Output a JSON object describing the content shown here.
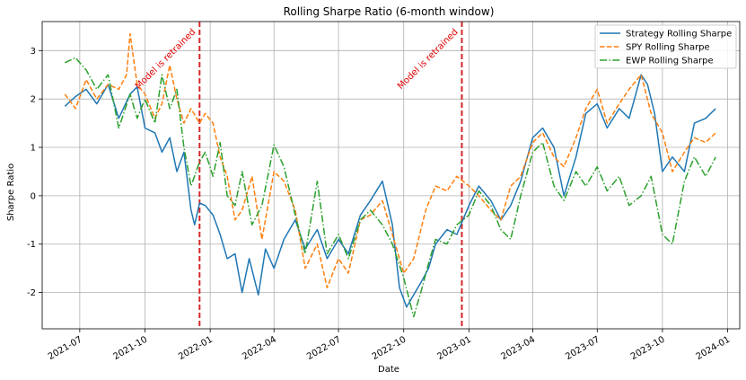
{
  "chart_data": {
    "type": "line",
    "title": "Rolling Sharpe Ratio (6-month window)",
    "xlabel": "Date",
    "ylabel": "Sharpe Ratio",
    "xlim": [
      "2021-05-09",
      "2024-01-18"
    ],
    "ylim": [
      -2.75,
      3.6
    ],
    "grid": true,
    "legend_position": "top-right",
    "x_ticks": [
      {
        "date": "2021-07-01",
        "label": "2021-07"
      },
      {
        "date": "2021-10-01",
        "label": "2021-10"
      },
      {
        "date": "2022-01-01",
        "label": "2022-01"
      },
      {
        "date": "2022-04-01",
        "label": "2022-04"
      },
      {
        "date": "2022-07-01",
        "label": "2022-07"
      },
      {
        "date": "2022-10-01",
        "label": "2022-10"
      },
      {
        "date": "2023-01-01",
        "label": "2023-01"
      },
      {
        "date": "2023-04-01",
        "label": "2023-04"
      },
      {
        "date": "2023-07-01",
        "label": "2023-07"
      },
      {
        "date": "2023-10-01",
        "label": "2023-10"
      },
      {
        "date": "2024-01-01",
        "label": "2024-01"
      }
    ],
    "y_ticks": [
      -2,
      -1,
      0,
      1,
      2,
      3
    ],
    "vertical_lines": [
      {
        "date": "2021-12-17",
        "label": "Model is retrained",
        "color": "#d62728"
      },
      {
        "date": "2022-12-22",
        "label": "Model is retrained",
        "color": "#d62728"
      }
    ],
    "series": [
      {
        "name": "Strategy Rolling Sharpe",
        "color": "#1f77b4",
        "style": "solid",
        "points": [
          [
            "2021-06-10",
            1.85
          ],
          [
            "2021-06-25",
            2.05
          ],
          [
            "2021-07-10",
            2.2
          ],
          [
            "2021-07-25",
            1.9
          ],
          [
            "2021-08-10",
            2.3
          ],
          [
            "2021-08-25",
            1.6
          ],
          [
            "2021-09-10",
            2.1
          ],
          [
            "2021-09-20",
            2.25
          ],
          [
            "2021-10-01",
            1.4
          ],
          [
            "2021-10-15",
            1.3
          ],
          [
            "2021-10-25",
            0.9
          ],
          [
            "2021-11-05",
            1.2
          ],
          [
            "2021-11-15",
            0.5
          ],
          [
            "2021-11-25",
            0.9
          ],
          [
            "2021-12-05",
            -0.3
          ],
          [
            "2021-12-10",
            -0.6
          ],
          [
            "2021-12-17",
            -0.15
          ],
          [
            "2021-12-25",
            -0.2
          ],
          [
            "2022-01-05",
            -0.4
          ],
          [
            "2022-01-15",
            -0.8
          ],
          [
            "2022-01-25",
            -1.3
          ],
          [
            "2022-02-05",
            -1.2
          ],
          [
            "2022-02-15",
            -2.0
          ],
          [
            "2022-02-25",
            -1.3
          ],
          [
            "2022-03-10",
            -2.05
          ],
          [
            "2022-03-20",
            -1.1
          ],
          [
            "2022-04-01",
            -1.5
          ],
          [
            "2022-04-15",
            -0.9
          ],
          [
            "2022-05-01",
            -0.5
          ],
          [
            "2022-05-15",
            -1.1
          ],
          [
            "2022-06-01",
            -0.7
          ],
          [
            "2022-06-15",
            -1.3
          ],
          [
            "2022-07-01",
            -0.9
          ],
          [
            "2022-07-15",
            -1.2
          ],
          [
            "2022-08-01",
            -0.4
          ],
          [
            "2022-08-15",
            -0.1
          ],
          [
            "2022-09-01",
            0.3
          ],
          [
            "2022-09-15",
            -0.6
          ],
          [
            "2022-09-25",
            -1.9
          ],
          [
            "2022-10-05",
            -2.3
          ],
          [
            "2022-10-15",
            -2.05
          ],
          [
            "2022-10-25",
            -1.8
          ],
          [
            "2022-11-05",
            -1.5
          ],
          [
            "2022-11-15",
            -1.0
          ],
          [
            "2022-12-01",
            -0.7
          ],
          [
            "2022-12-15",
            -0.8
          ],
          [
            "2023-01-01",
            -0.2
          ],
          [
            "2023-01-15",
            0.2
          ],
          [
            "2023-02-01",
            -0.1
          ],
          [
            "2023-02-15",
            -0.5
          ],
          [
            "2023-03-01",
            -0.2
          ],
          [
            "2023-03-15",
            0.3
          ],
          [
            "2023-04-01",
            1.2
          ],
          [
            "2023-04-15",
            1.4
          ],
          [
            "2023-05-01",
            1.0
          ],
          [
            "2023-05-15",
            0.0
          ],
          [
            "2023-06-01",
            0.8
          ],
          [
            "2023-06-15",
            1.7
          ],
          [
            "2023-07-01",
            1.9
          ],
          [
            "2023-07-15",
            1.4
          ],
          [
            "2023-08-01",
            1.8
          ],
          [
            "2023-08-15",
            1.6
          ],
          [
            "2023-09-01",
            2.5
          ],
          [
            "2023-09-10",
            2.3
          ],
          [
            "2023-09-20",
            1.7
          ],
          [
            "2023-10-01",
            0.5
          ],
          [
            "2023-10-15",
            0.8
          ],
          [
            "2023-11-01",
            0.5
          ],
          [
            "2023-11-15",
            1.5
          ],
          [
            "2023-12-01",
            1.6
          ],
          [
            "2023-12-15",
            1.8
          ]
        ]
      },
      {
        "name": "SPY Rolling Sharpe",
        "color": "#ff7f0e",
        "style": "dashed",
        "points": [
          [
            "2021-06-10",
            2.1
          ],
          [
            "2021-06-25",
            1.8
          ],
          [
            "2021-07-10",
            2.4
          ],
          [
            "2021-07-25",
            2.0
          ],
          [
            "2021-08-10",
            2.3
          ],
          [
            "2021-08-25",
            2.2
          ],
          [
            "2021-09-05",
            2.5
          ],
          [
            "2021-09-10",
            3.35
          ],
          [
            "2021-09-20",
            2.3
          ],
          [
            "2021-10-01",
            2.1
          ],
          [
            "2021-10-15",
            1.6
          ],
          [
            "2021-10-25",
            1.9
          ],
          [
            "2021-11-05",
            2.7
          ],
          [
            "2021-11-15",
            2.0
          ],
          [
            "2021-11-25",
            1.5
          ],
          [
            "2021-12-05",
            1.8
          ],
          [
            "2021-12-17",
            1.5
          ],
          [
            "2021-12-25",
            1.7
          ],
          [
            "2022-01-05",
            1.5
          ],
          [
            "2022-01-15",
            0.8
          ],
          [
            "2022-01-25",
            0.4
          ],
          [
            "2022-02-05",
            -0.5
          ],
          [
            "2022-02-15",
            -0.3
          ],
          [
            "2022-03-01",
            0.4
          ],
          [
            "2022-03-15",
            -0.9
          ],
          [
            "2022-04-01",
            0.5
          ],
          [
            "2022-04-15",
            0.3
          ],
          [
            "2022-05-01",
            -0.3
          ],
          [
            "2022-05-15",
            -1.5
          ],
          [
            "2022-06-01",
            -1.0
          ],
          [
            "2022-06-15",
            -1.9
          ],
          [
            "2022-07-01",
            -1.3
          ],
          [
            "2022-07-15",
            -1.6
          ],
          [
            "2022-08-01",
            -0.5
          ],
          [
            "2022-08-15",
            -0.4
          ],
          [
            "2022-09-01",
            -0.1
          ],
          [
            "2022-09-15",
            -0.8
          ],
          [
            "2022-10-01",
            -1.6
          ],
          [
            "2022-10-15",
            -1.3
          ],
          [
            "2022-11-01",
            -0.3
          ],
          [
            "2022-11-15",
            0.2
          ],
          [
            "2022-12-01",
            0.1
          ],
          [
            "2022-12-15",
            0.4
          ],
          [
            "2023-01-01",
            0.2
          ],
          [
            "2023-01-15",
            0.0
          ],
          [
            "2023-02-01",
            -0.3
          ],
          [
            "2023-02-15",
            -0.5
          ],
          [
            "2023-03-01",
            0.2
          ],
          [
            "2023-03-15",
            0.4
          ],
          [
            "2023-04-01",
            1.1
          ],
          [
            "2023-04-15",
            1.3
          ],
          [
            "2023-05-01",
            0.8
          ],
          [
            "2023-05-15",
            0.6
          ],
          [
            "2023-06-01",
            1.2
          ],
          [
            "2023-06-15",
            1.8
          ],
          [
            "2023-07-01",
            2.2
          ],
          [
            "2023-07-15",
            1.5
          ],
          [
            "2023-08-01",
            1.9
          ],
          [
            "2023-08-15",
            2.2
          ],
          [
            "2023-09-01",
            2.5
          ],
          [
            "2023-09-15",
            1.7
          ],
          [
            "2023-10-01",
            1.3
          ],
          [
            "2023-10-15",
            0.5
          ],
          [
            "2023-11-01",
            0.9
          ],
          [
            "2023-11-15",
            1.2
          ],
          [
            "2023-12-01",
            1.1
          ],
          [
            "2023-12-15",
            1.3
          ]
        ]
      },
      {
        "name": "EWP Rolling Sharpe",
        "color": "#2ca02c",
        "style": "dashdot",
        "points": [
          [
            "2021-06-10",
            2.75
          ],
          [
            "2021-06-25",
            2.85
          ],
          [
            "2021-07-10",
            2.6
          ],
          [
            "2021-07-25",
            2.2
          ],
          [
            "2021-08-10",
            2.5
          ],
          [
            "2021-08-25",
            1.4
          ],
          [
            "2021-09-10",
            2.1
          ],
          [
            "2021-09-20",
            1.6
          ],
          [
            "2021-10-01",
            2.0
          ],
          [
            "2021-10-15",
            1.5
          ],
          [
            "2021-10-25",
            2.5
          ],
          [
            "2021-11-05",
            1.8
          ],
          [
            "2021-11-15",
            2.2
          ],
          [
            "2021-11-25",
            1.0
          ],
          [
            "2021-12-05",
            0.2
          ],
          [
            "2021-12-17",
            0.7
          ],
          [
            "2021-12-25",
            0.9
          ],
          [
            "2022-01-05",
            0.4
          ],
          [
            "2022-01-15",
            1.1
          ],
          [
            "2022-01-25",
            0.0
          ],
          [
            "2022-02-05",
            -0.2
          ],
          [
            "2022-02-15",
            0.5
          ],
          [
            "2022-03-01",
            -0.6
          ],
          [
            "2022-03-15",
            -0.2
          ],
          [
            "2022-04-01",
            1.05
          ],
          [
            "2022-04-15",
            0.6
          ],
          [
            "2022-05-01",
            -0.4
          ],
          [
            "2022-05-15",
            -1.2
          ],
          [
            "2022-06-01",
            0.3
          ],
          [
            "2022-06-15",
            -1.2
          ],
          [
            "2022-07-01",
            -0.8
          ],
          [
            "2022-07-15",
            -1.3
          ],
          [
            "2022-08-01",
            -0.5
          ],
          [
            "2022-08-15",
            -0.3
          ],
          [
            "2022-09-01",
            -0.6
          ],
          [
            "2022-09-15",
            -1.0
          ],
          [
            "2022-10-01",
            -1.7
          ],
          [
            "2022-10-15",
            -2.5
          ],
          [
            "2022-10-25",
            -2.0
          ],
          [
            "2022-11-05",
            -1.4
          ],
          [
            "2022-11-15",
            -0.9
          ],
          [
            "2022-12-01",
            -1.0
          ],
          [
            "2022-12-15",
            -0.6
          ],
          [
            "2023-01-01",
            -0.4
          ],
          [
            "2023-01-15",
            0.1
          ],
          [
            "2023-02-01",
            -0.2
          ],
          [
            "2023-02-15",
            -0.7
          ],
          [
            "2023-03-01",
            -0.9
          ],
          [
            "2023-03-15",
            0.0
          ],
          [
            "2023-04-01",
            0.9
          ],
          [
            "2023-04-15",
            1.1
          ],
          [
            "2023-05-01",
            0.2
          ],
          [
            "2023-05-15",
            -0.1
          ],
          [
            "2023-06-01",
            0.5
          ],
          [
            "2023-06-15",
            0.2
          ],
          [
            "2023-07-01",
            0.6
          ],
          [
            "2023-07-15",
            0.1
          ],
          [
            "2023-08-01",
            0.4
          ],
          [
            "2023-08-15",
            -0.2
          ],
          [
            "2023-09-01",
            0.0
          ],
          [
            "2023-09-15",
            0.4
          ],
          [
            "2023-10-01",
            -0.8
          ],
          [
            "2023-10-15",
            -1.0
          ],
          [
            "2023-11-01",
            0.3
          ],
          [
            "2023-11-15",
            0.8
          ],
          [
            "2023-12-01",
            0.4
          ],
          [
            "2023-12-15",
            0.8
          ]
        ]
      }
    ]
  }
}
